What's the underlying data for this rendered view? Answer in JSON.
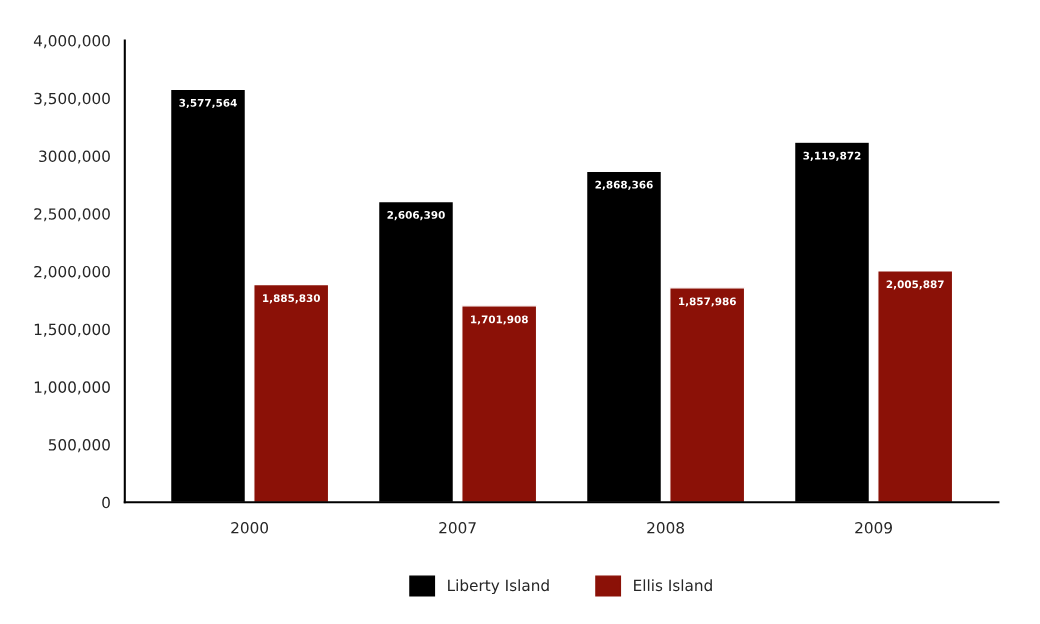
{
  "chart_data": {
    "type": "bar",
    "categories": [
      "2000",
      "2007",
      "2008",
      "2009"
    ],
    "series": [
      {
        "name": "Liberty Island",
        "color": "#000000",
        "values": [
          3577564,
          2606390,
          2868366,
          3119872
        ],
        "value_labels": [
          "3,577,564",
          "2,606,390",
          "2,868,366",
          "3,119,872"
        ]
      },
      {
        "name": "Ellis Island",
        "color": "#8b1107",
        "values": [
          1885830,
          1701908,
          1857986,
          2005887
        ],
        "value_labels": [
          "1,885,830",
          "1,701,908",
          "1,857,986",
          "2,005,887"
        ]
      }
    ],
    "ylim": [
      0,
      4000000
    ],
    "yticks": [
      0,
      {
        "value": 500000,
        "label": "500,000"
      },
      {
        "value": 1000000,
        "label": "1,000,000"
      },
      {
        "value": 1500000,
        "label": "1,500,000"
      },
      {
        "value": 2000000,
        "label": "2,000,000"
      },
      {
        "value": 2500000,
        "label": "2,500,000"
      },
      {
        "value": 3000000,
        "label": "3000,000"
      },
      {
        "value": 3500000,
        "label": "3,500,000"
      },
      {
        "value": 4000000,
        "label": "4,000,000"
      }
    ],
    "grid": false,
    "legend": "bottom"
  }
}
